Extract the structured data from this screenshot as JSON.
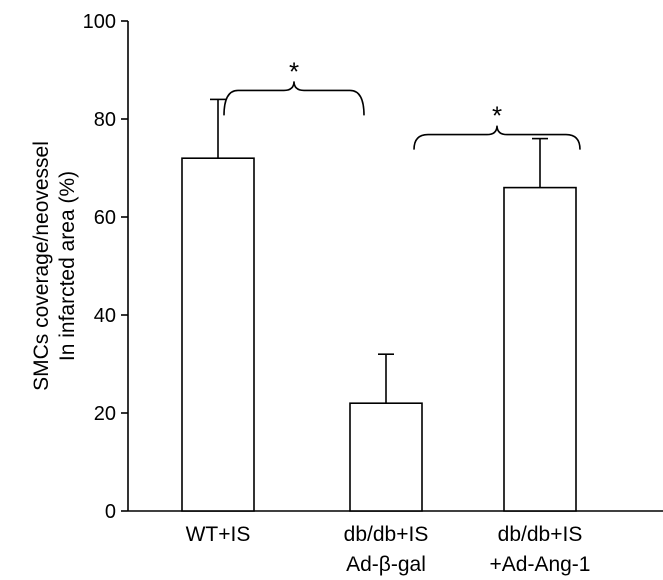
{
  "chart_data": {
    "type": "bar",
    "categories": [
      [
        "WT+IS"
      ],
      [
        "db/db+IS",
        "Ad-β-gal"
      ],
      [
        "db/db+IS",
        "+Ad-Ang-1"
      ]
    ],
    "values": [
      72,
      22,
      66
    ],
    "error": [
      12,
      10,
      10
    ],
    "ylabel": [
      "SMCs coverage/neovessel",
      "In infarcted area (%)"
    ],
    "ylim": [
      0,
      100
    ],
    "yticks": [
      0,
      20,
      40,
      60,
      80,
      100
    ],
    "grid": false,
    "bar_fill": "#ffffff",
    "bar_edge": "#000000",
    "significance": [
      {
        "between": [
          0,
          1
        ],
        "label": "*"
      },
      {
        "between": [
          1,
          2
        ],
        "label": "*"
      }
    ]
  }
}
